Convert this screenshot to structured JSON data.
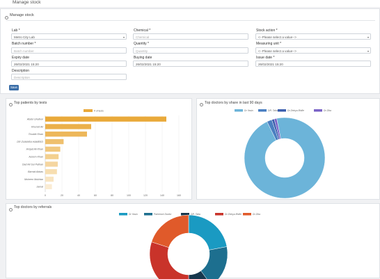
{
  "page": {
    "title": "Manage stock"
  },
  "manage_stock": {
    "panel_title": "Manage stock",
    "lab": {
      "label": "Lab *",
      "value": "Metro City Lab"
    },
    "chemical": {
      "label": "Chemical *",
      "placeholder": "Chemical"
    },
    "stock_action": {
      "label": "Stock action *",
      "value": "<--Please select a value-->"
    },
    "batch_number": {
      "label": "Batch number *",
      "placeholder": "Batch number"
    },
    "quantity": {
      "label": "Quantity *",
      "placeholder": "Quantity"
    },
    "measuring_unit": {
      "label": "Measuring unit *",
      "value": "<--Please select a value-->"
    },
    "expiry_date": {
      "label": "Expiry date",
      "value": "26/02/2021 15:20"
    },
    "buying_date": {
      "label": "Buying date",
      "value": "26/02/2021 15:20"
    },
    "issue_date": {
      "label": "Issue date *",
      "value": "26/02/2021 15:20"
    },
    "description": {
      "label": "Description",
      "placeholder": "Description"
    },
    "save_label": "Save"
  },
  "top_patients": {
    "panel_title": "Top patients by tests",
    "chart_data": {
      "type": "bar",
      "orientation": "horizontal",
      "legend": [
        "# of tests"
      ],
      "categories": [
        "Abdul Ghafoor",
        "Khursid Ali",
        "Trouble Khan",
        "DR ZUMARA HAMEED",
        "Amjad Ali Khan",
        "Azeem Khan",
        "Dad Ali Sul Pathan",
        "Barrad Abbas",
        "Moheen Mukhtar",
        "Jamal"
      ],
      "values": [
        145,
        55,
        50,
        22,
        18,
        16,
        15,
        14,
        10,
        8
      ],
      "xlim": [
        0,
        160
      ],
      "xticks": [
        "0",
        "20",
        "40",
        "60",
        "80",
        "100",
        "120",
        "140",
        "160"
      ],
      "colors": [
        "#e9a93a",
        "#ebb04a",
        "#edb75a",
        "#efc06e",
        "#f1c87f",
        "#f3d08f",
        "#f5d6a0",
        "#f7deb0",
        "#f8e5c2",
        "#faecd3"
      ]
    }
  },
  "top_doctors_share": {
    "panel_title": "Top doctors by share in last 90 days",
    "chart_data": {
      "type": "pie",
      "legend": [
        "Dr Yasin",
        "DR. Talia",
        "Dr Zeinya Bhille",
        "Dr Zika"
      ],
      "values": [
        96,
        2,
        1,
        1
      ],
      "colors": [
        "#6cb4d9",
        "#4a7fc1",
        "#3c5fae",
        "#7a63c7"
      ]
    }
  },
  "top_doctors_referrals": {
    "panel_title": "Top doctors by referrals",
    "chart_data": {
      "type": "pie",
      "legend": [
        "Dr Yasin",
        "Parhence Doctor",
        "DR. Talia",
        "Dr Zeinya Bhille",
        "Dr Zika"
      ],
      "values": [
        22,
        18,
        10,
        30,
        20
      ],
      "colors": [
        "#1a9ac2",
        "#1d6f8f",
        "#17374d",
        "#c9332a",
        "#e05a2a"
      ]
    }
  }
}
